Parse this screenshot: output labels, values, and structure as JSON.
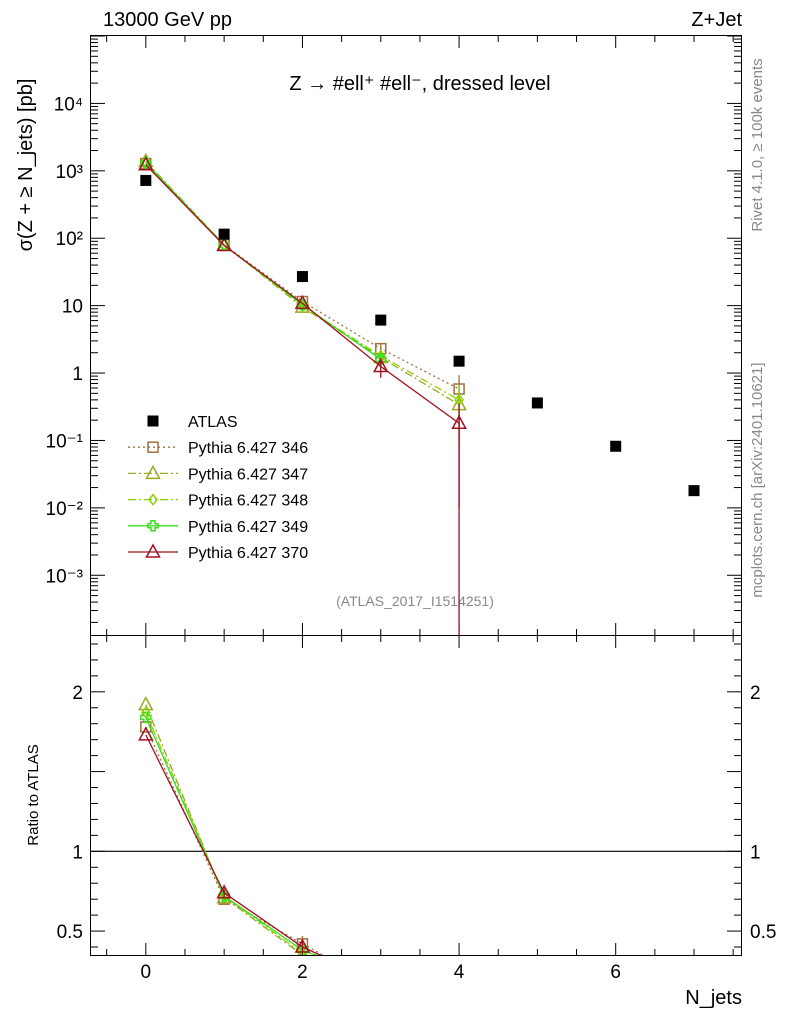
{
  "header": {
    "left": "13000 GeV pp",
    "right": "Z+Jet"
  },
  "side": {
    "rivet": "Rivet 4.1.0, ≥ 100k events",
    "mcplots": "mcplots.cern.ch [arXiv:2401.10621]"
  },
  "chart_data": [
    {
      "type": "scatter",
      "panel": "main",
      "title": "Z → #ell⁺ #ell⁻, dressed level",
      "analysis_tag": "(ATLAS_2017_I1514251)",
      "ylabel": "σ(Z + ≥ N_jets) [pb]",
      "xlabel": "N_jets",
      "yscale": "log",
      "xlim": [
        -0.7,
        7.6
      ],
      "ylim": [
        0.00013,
        100000
      ],
      "x_ticks": [
        "0",
        "2",
        "4",
        "6"
      ],
      "y_ticks": [
        "10⁻³",
        "10⁻²",
        "10⁻¹",
        "1",
        "10",
        "10²",
        "10³",
        "10⁴"
      ],
      "series": [
        {
          "name": "ATLAS",
          "color": "#000000",
          "marker": "square-filled",
          "line": "none",
          "x": [
            0,
            1,
            2,
            3,
            4,
            5,
            6,
            7
          ],
          "y": [
            720,
            115,
            27,
            6.1,
            1.5,
            0.36,
            0.082,
            0.018
          ]
        },
        {
          "name": "Pythia 6.427 346",
          "color": "#a0703a",
          "marker": "square-open",
          "line": "dotted",
          "x": [
            0,
            1,
            2,
            3,
            4
          ],
          "y": [
            1280,
            80,
            11.5,
            2.3,
            0.58
          ],
          "err": [
            0,
            0,
            0,
            0.35,
            0.35
          ]
        },
        {
          "name": "Pythia 6.427 347",
          "color": "#9aaa20",
          "marker": "triangle-open",
          "line": "dashdot",
          "x": [
            0,
            1,
            2,
            3,
            4
          ],
          "y": [
            1380,
            80,
            9.5,
            1.7,
            0.34
          ],
          "err": [
            0,
            0,
            0,
            0.3,
            0.25
          ]
        },
        {
          "name": "Pythia 6.427 348",
          "color": "#8ad400",
          "marker": "diamond-open",
          "line": "dashdot",
          "x": [
            0,
            1,
            2,
            3,
            4
          ],
          "y": [
            1350,
            80,
            9.8,
            1.8,
            0.4
          ],
          "err": [
            0,
            0,
            0,
            0.3,
            0.25
          ]
        },
        {
          "name": "Pythia 6.427 349",
          "color": "#3adc20",
          "marker": "cross-open",
          "line": "solid",
          "x": [
            0,
            1,
            2,
            3
          ],
          "y": [
            1320,
            79,
            10.3,
            1.6
          ],
          "err": [
            0,
            0,
            0,
            0.3
          ]
        },
        {
          "name": "Pythia 6.427 370",
          "color": "#a01020",
          "marker": "triangle-open",
          "line": "solid",
          "x": [
            0,
            1,
            2,
            3,
            4
          ],
          "y": [
            1230,
            78,
            10.8,
            1.25,
            0.18
          ],
          "err": [
            0,
            0,
            0,
            0.4,
            0.17
          ]
        }
      ]
    },
    {
      "type": "line",
      "panel": "ratio",
      "ylabel": "Ratio to ATLAS",
      "ylim": [
        0.35,
        2.35
      ],
      "y_ticks": [
        "0.5",
        "1",
        "2"
      ],
      "reference": 1,
      "series": [
        {
          "name": "Pythia 6.427 346",
          "color": "#a0703a",
          "marker": "square-open",
          "line": "dotted",
          "x": [
            0,
            1,
            2
          ],
          "y": [
            1.78,
            0.7,
            0.42
          ],
          "err": [
            0,
            0.03,
            0.05
          ]
        },
        {
          "name": "Pythia 6.427 347",
          "color": "#9aaa20",
          "marker": "triangle-open",
          "line": "dashdot",
          "x": [
            0,
            1,
            2
          ],
          "y": [
            1.92,
            0.71,
            0.35
          ],
          "err": [
            0,
            0.03,
            0
          ]
        },
        {
          "name": "Pythia 6.427 348",
          "color": "#8ad400",
          "marker": "diamond-open",
          "line": "dashdot",
          "x": [
            0,
            1,
            2
          ],
          "y": [
            1.87,
            0.72,
            0.36
          ],
          "err": [
            0,
            0.03,
            0
          ]
        },
        {
          "name": "Pythia 6.427 349",
          "color": "#3adc20",
          "marker": "cross-open",
          "line": "solid",
          "x": [
            0,
            1,
            2
          ],
          "y": [
            1.84,
            0.72,
            0.38
          ],
          "err": [
            0,
            0.03,
            0
          ]
        },
        {
          "name": "Pythia 6.427 370",
          "color": "#a01020",
          "marker": "triangle-open",
          "line": "solid",
          "x": [
            0,
            1,
            2
          ],
          "y": [
            1.73,
            0.74,
            0.4
          ],
          "err": [
            0,
            0.03,
            0.05
          ]
        }
      ]
    }
  ]
}
